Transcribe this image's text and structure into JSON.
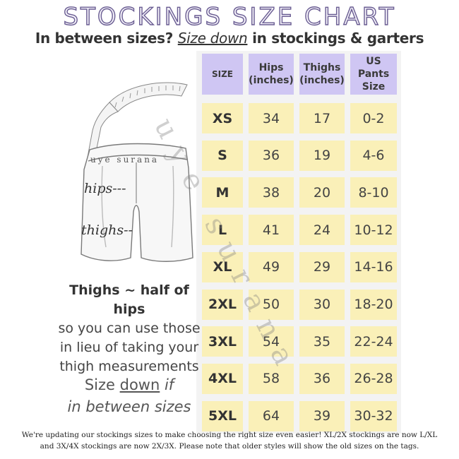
{
  "title": "STOCKINGS SIZE CHART",
  "subtitle": {
    "prefix": "In between sizes? ",
    "emphasis": "Size down",
    "suffix": " in stockings & garters"
  },
  "table": {
    "headers": [
      "SIZE",
      "Hips (inches)",
      "Thighs (inches)",
      "US Pants Size"
    ],
    "rows": [
      [
        "XS",
        "34",
        "17",
        "0-2"
      ],
      [
        "S",
        "36",
        "19",
        "4-6"
      ],
      [
        "M",
        "38",
        "20",
        "8-10"
      ],
      [
        "L",
        "41",
        "24",
        "10-12"
      ],
      [
        "XL",
        "49",
        "29",
        "14-16"
      ],
      [
        "2XL",
        "50",
        "30",
        "18-20"
      ],
      [
        "3XL",
        "54",
        "35",
        "22-24"
      ],
      [
        "4XL",
        "58",
        "36",
        "26-28"
      ],
      [
        "5XL",
        "64",
        "39",
        "30-32"
      ]
    ]
  },
  "illustration": {
    "brand_text": "uye surana",
    "hips_label": "hips---",
    "thighs_label": "thighs--"
  },
  "watermark": "uye surana",
  "notes": {
    "thighs_bold": "Thighs ~ half of hips",
    "thighs_rest": "so you can use those in lieu of taking your thigh measurements",
    "size_prefix": "Size ",
    "size_down": "down",
    "size_if": " if ",
    "size_suffix": "in between sizes"
  },
  "footer": "We're updating our stockings sizes to make choosing the right size even easier! XL/2X stockings are now L/XL and 3X/4X stockings are now 2X/3X. Please note that older styles will show the old sizes on the tags.",
  "colors": {
    "header_fill": "#cfc6f3",
    "cell_fill": "#faf0b8",
    "title_stroke": "#6a5d92"
  }
}
